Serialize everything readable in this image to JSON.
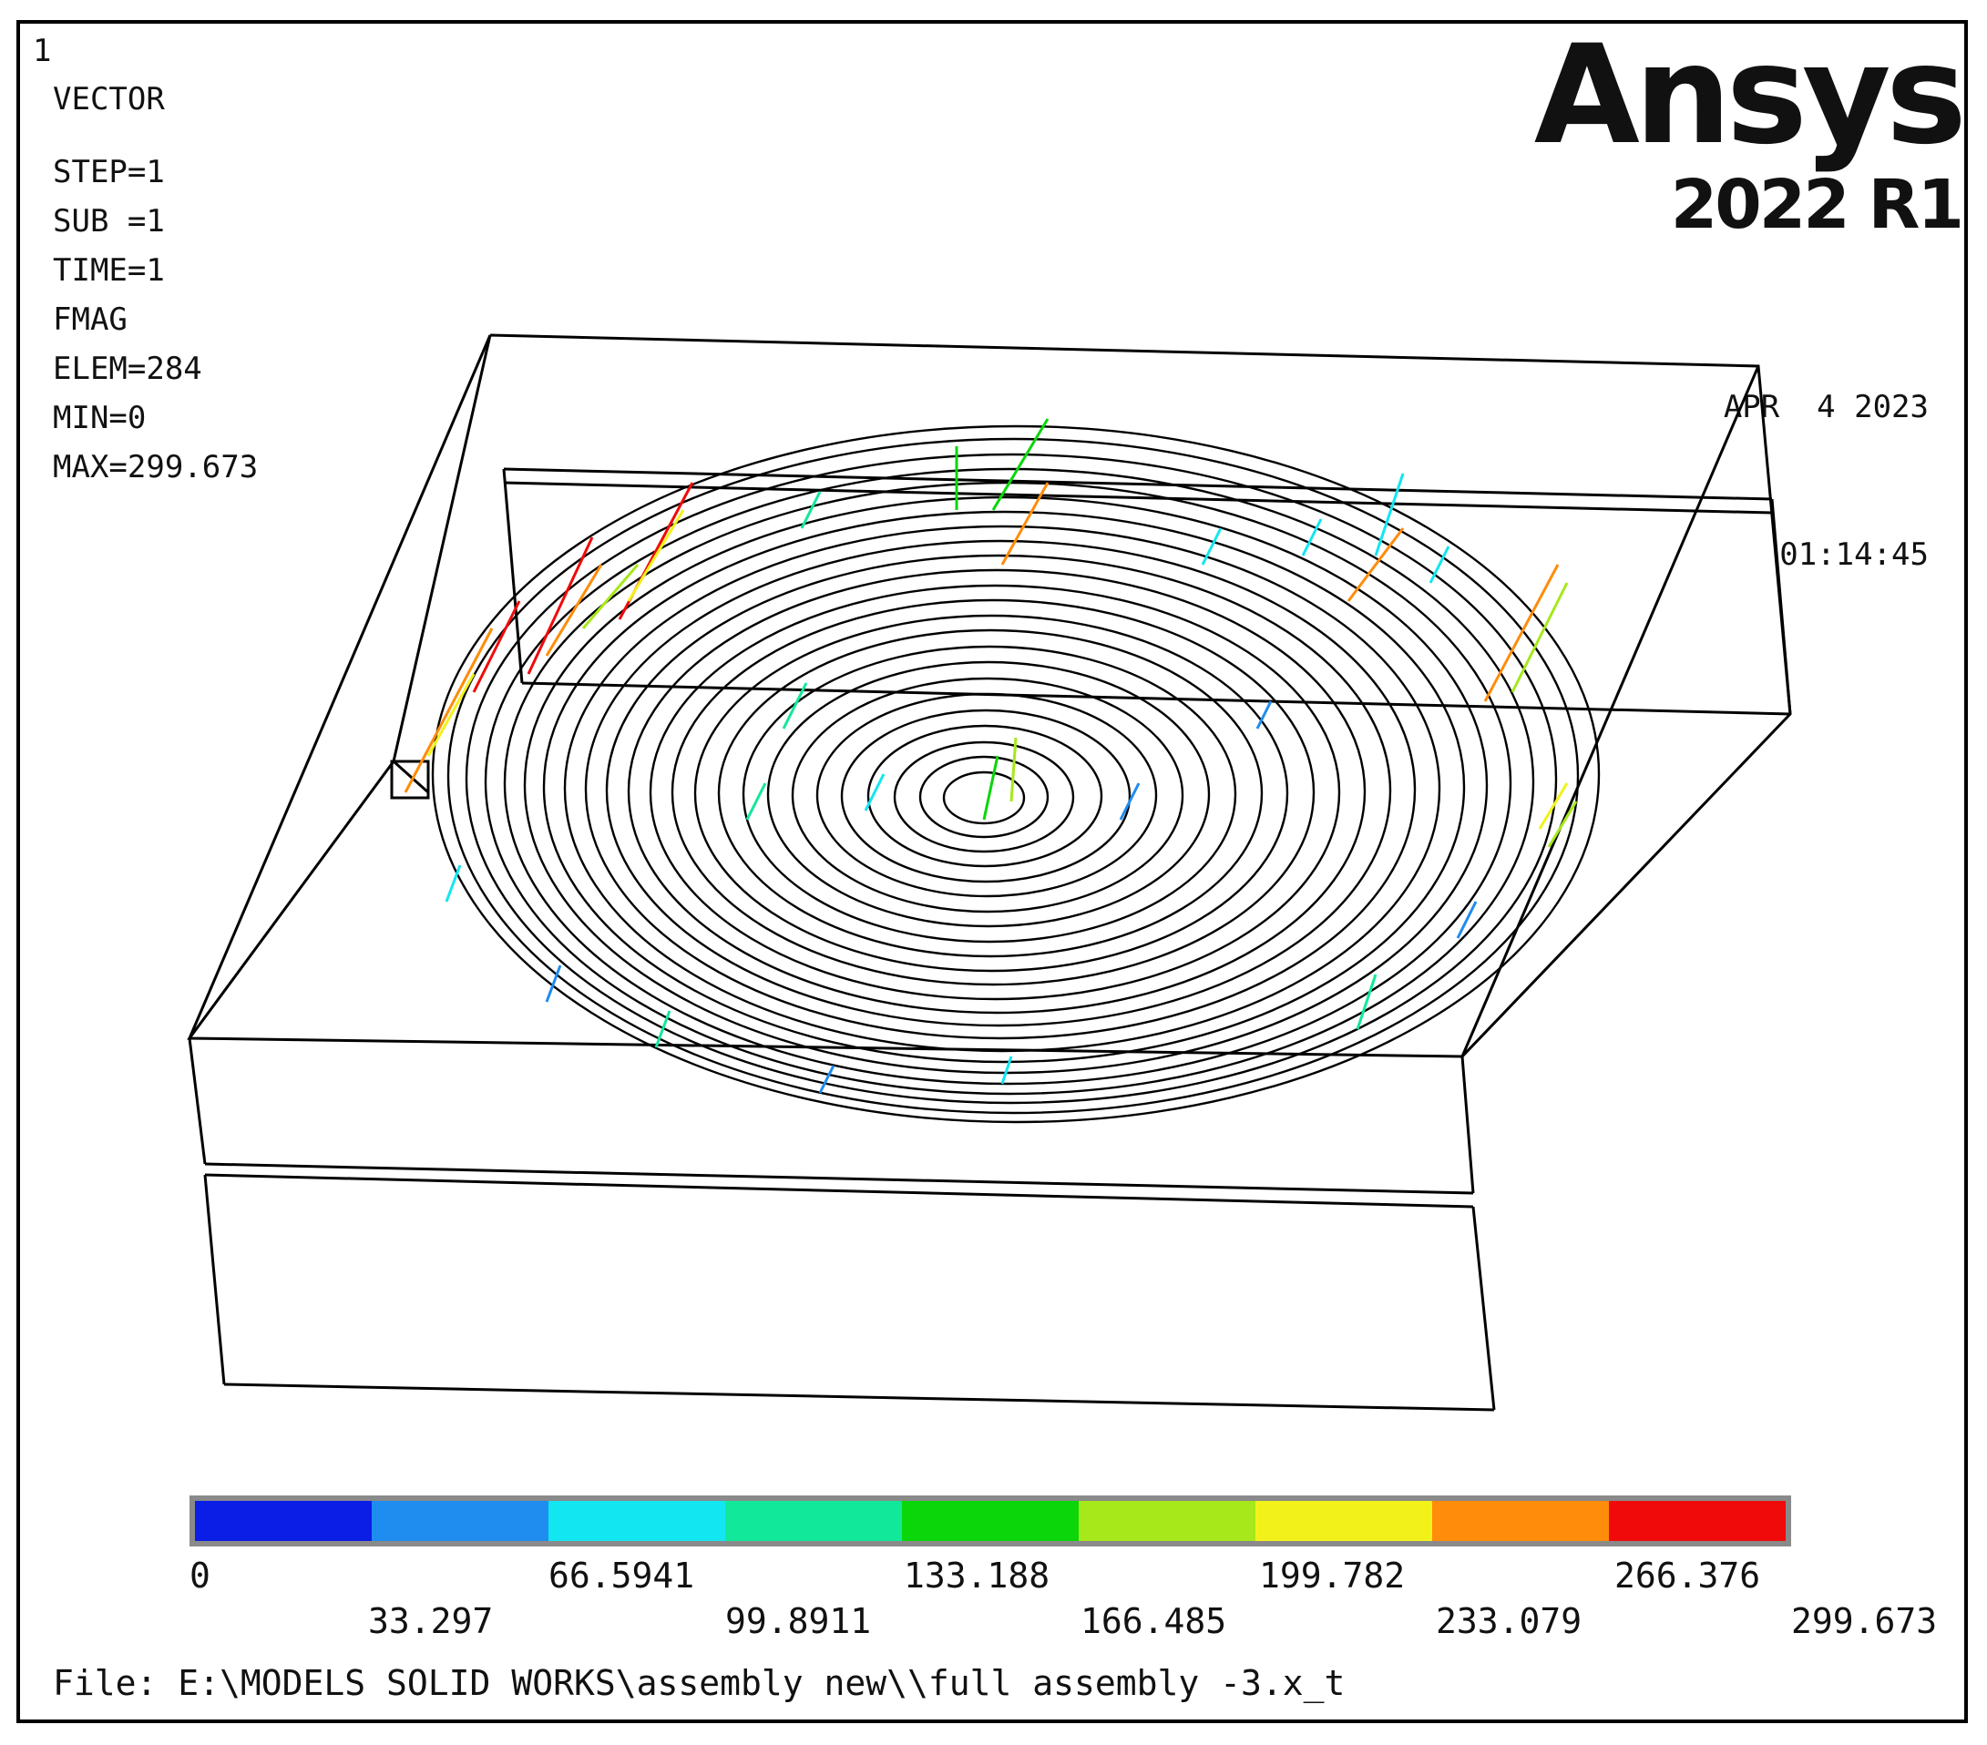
{
  "window_number": "1",
  "plot_info": {
    "title": "VECTOR",
    "step": "STEP=1",
    "sub": "SUB =1",
    "time": "TIME=1",
    "quantity": "FMAG",
    "elem": "ELEM=284",
    "min": "MIN=0",
    "max": "MAX=299.673"
  },
  "branding": {
    "brand": "Ansys",
    "version": "2022 R1"
  },
  "datetime": {
    "date": "APR  4 2023",
    "time": "01:14:45"
  },
  "legend": {
    "colors": [
      "#0a1ee6",
      "#1f8cf0",
      "#12e6f0",
      "#12e89a",
      "#0ad60a",
      "#a6e81a",
      "#f2f21a",
      "#ff8c0a",
      "#f00a0a"
    ],
    "labels_upper": [
      "0",
      "66.5941",
      "133.188",
      "199.782",
      "266.376"
    ],
    "labels_lower": [
      "33.297",
      "99.8911",
      "166.485",
      "233.079",
      "299.673"
    ]
  },
  "file": "File: E:\\MODELS SOLID WORKS\\assembly new\\\\full assembly -3.x_t"
}
